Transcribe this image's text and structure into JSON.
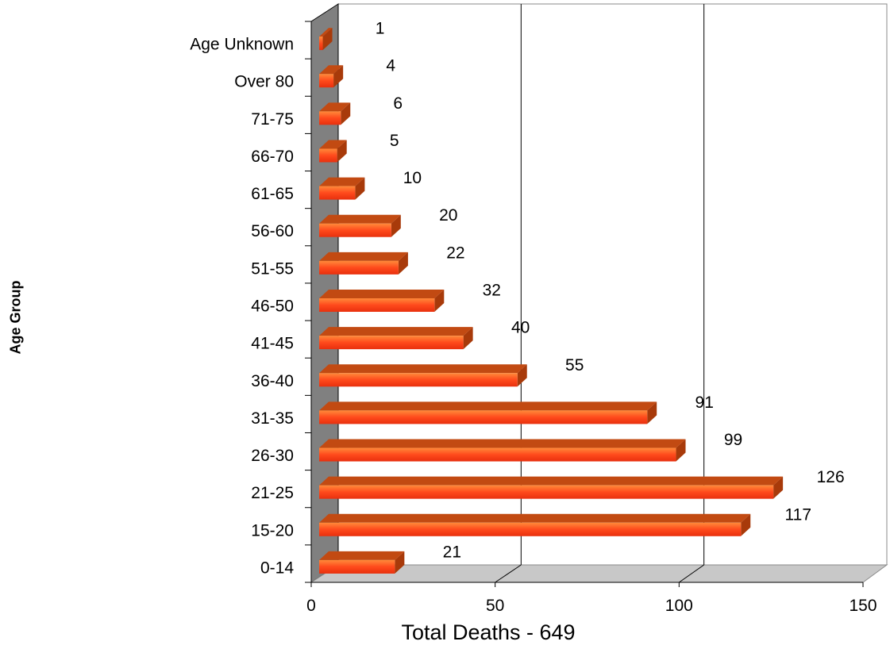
{
  "chart_data": {
    "type": "bar",
    "orientation": "horizontal",
    "categories": [
      "0-14",
      "15-20",
      "21-25",
      "26-30",
      "31-35",
      "36-40",
      "41-45",
      "46-50",
      "51-55",
      "56-60",
      "61-65",
      "66-70",
      "71-75",
      "Over 80",
      "Age Unknown"
    ],
    "values": [
      21,
      117,
      126,
      99,
      91,
      55,
      40,
      32,
      22,
      20,
      10,
      5,
      6,
      4,
      1
    ],
    "xlabel": "Total Deaths - 649",
    "ylabel": "Age Group",
    "xlim": [
      0,
      150
    ],
    "xticks": [
      "0",
      "50",
      "100",
      "150"
    ],
    "grid": true,
    "legend": "none",
    "colors": {
      "bar_front": "#ff4a1c",
      "bar_front_light": "#ff7a3a",
      "bar_top": "#c24a12",
      "bar_side": "#a83a0a",
      "left_wall": "#808080",
      "floor": "#c8c8c8",
      "gridline": "#000000"
    }
  }
}
